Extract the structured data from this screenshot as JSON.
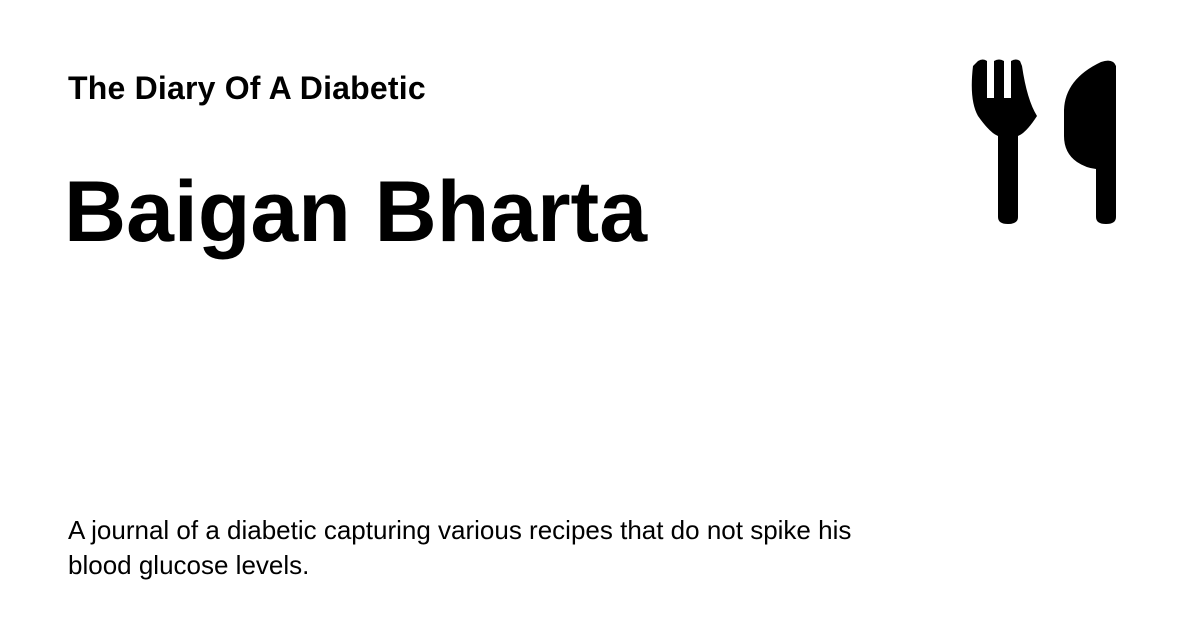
{
  "site": {
    "name": "The Diary Of A Diabetic"
  },
  "post": {
    "title": "Baigan Bharta",
    "description": "A journal of a diabetic capturing various recipes that do not spike his blood glucose levels."
  },
  "icons": {
    "logo": "fork-and-knife-icon"
  },
  "colors": {
    "background": "#ffffff",
    "text": "#000000"
  }
}
